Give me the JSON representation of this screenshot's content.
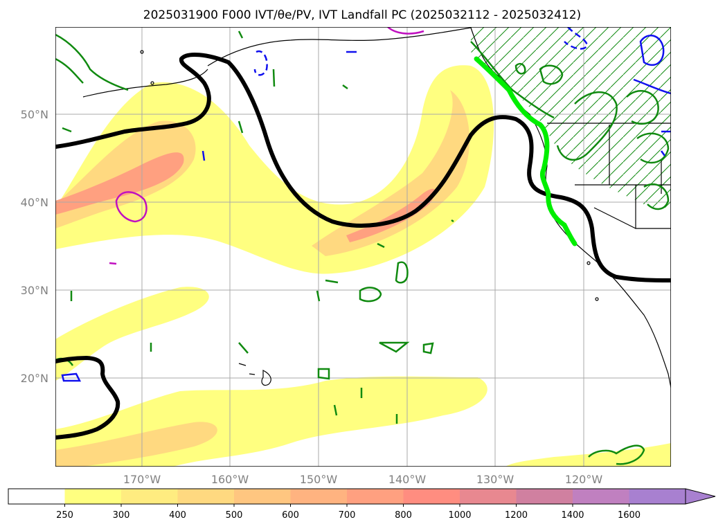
{
  "title": "2025031900 F000 IVT/θe/PV, IVT Landfall PC (2025032112 - 2025032412)",
  "lat_labels": [
    "50°N",
    "40°N",
    "30°N",
    "20°N"
  ],
  "lon_labels": [
    "170°W",
    "160°W",
    "150°W",
    "140°W",
    "130°W",
    "120°W"
  ],
  "colorbar": {
    "ticks": [
      "250",
      "300",
      "400",
      "500",
      "600",
      "700",
      "800",
      "1000",
      "1200",
      "1400",
      "1600"
    ],
    "colors": [
      "#ffffff",
      "#ffff80",
      "#ffec80",
      "#ffd980",
      "#ffc680",
      "#ffb380",
      "#ffa080",
      "#ff8d80",
      "#e88890",
      "#d080a0",
      "#c080c0",
      "#a880d0"
    ]
  },
  "legend_colors": {
    "ivt_low": "#ffff80",
    "ivt_mid": "#ffd980",
    "ivt_high": "#ff9d80",
    "pv_contour": "#000000",
    "landfall": "#00ee00",
    "theta_green": "#108a10",
    "blue_contour": "#1010ee",
    "magenta_contour": "#c010c0"
  }
}
